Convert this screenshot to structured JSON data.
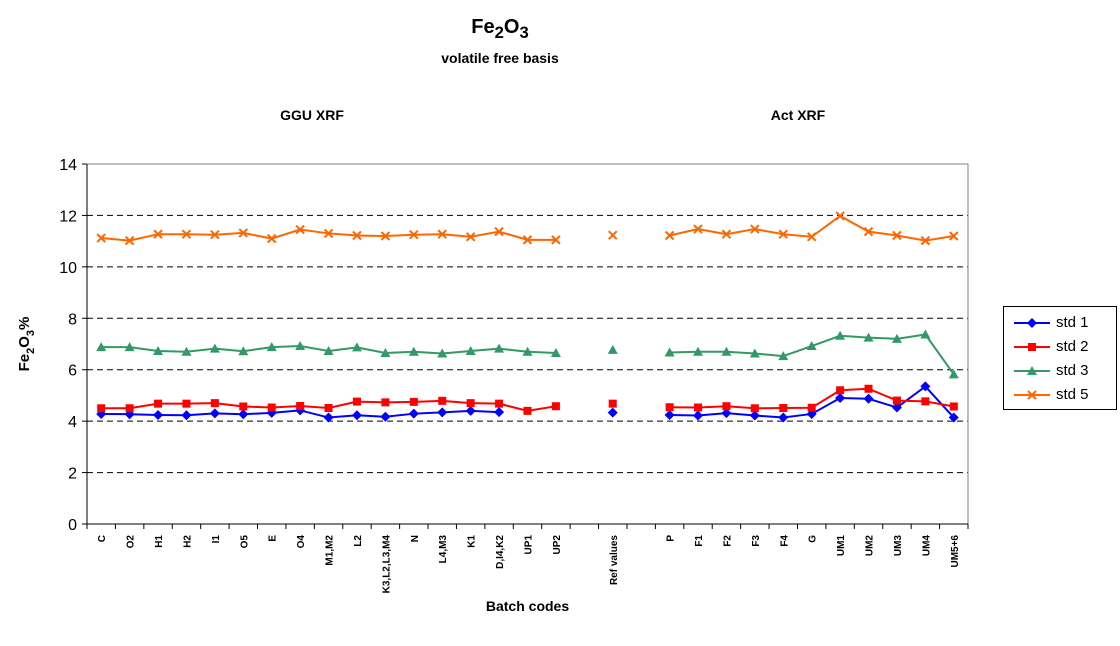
{
  "chart_data": {
    "type": "line",
    "title": "Fe2O3",
    "title_parts": {
      "base": "Fe",
      "sub1": "2",
      "mid": "O",
      "sub2": "3"
    },
    "subtitle": "volatile free basis",
    "section_labels": [
      "GGU XRF",
      "Act XRF"
    ],
    "xlabel": "Batch codes",
    "ylabel": "Fe2O3%",
    "ylabel_parts": {
      "base": "Fe",
      "sub1": "2",
      "mid": "O",
      "sub2": "3",
      "tail": "%"
    },
    "ylim": [
      0,
      14
    ],
    "yticks": [
      0,
      2,
      4,
      6,
      8,
      10,
      12,
      14
    ],
    "grid": "horizontal dashed",
    "legend_position": "right",
    "categories": [
      "C",
      "O2",
      "H1",
      "H2",
      "I1",
      "O5",
      "E",
      "O4",
      "M1,M2",
      "L2",
      "K3,L2,L3,M4",
      "N",
      "L4,M3",
      "K1",
      "D,I4,K2",
      "UP1",
      "UP2",
      "",
      "Ref values",
      "",
      "P",
      "F1",
      "F2",
      "F3",
      "F4",
      "G",
      "UM1",
      "UM2",
      "UM3",
      "UM4",
      "UM5+6"
    ],
    "series": [
      {
        "name": "std 1",
        "color": "#0000ff",
        "marker": "diamond",
        "values": [
          4.28,
          4.27,
          4.24,
          4.23,
          4.3,
          4.27,
          4.32,
          4.42,
          4.14,
          4.23,
          4.17,
          4.29,
          4.34,
          4.4,
          4.35,
          null,
          null,
          null,
          4.33,
          null,
          4.24,
          4.22,
          4.31,
          4.22,
          4.14,
          4.28,
          4.9,
          4.87,
          4.53,
          5.35,
          4.14
        ]
      },
      {
        "name": "std 2",
        "color": "#ff0000",
        "marker": "square",
        "values": [
          4.5,
          4.5,
          4.68,
          4.68,
          4.7,
          4.57,
          4.53,
          4.59,
          4.51,
          4.76,
          4.73,
          4.75,
          4.79,
          4.7,
          4.68,
          4.4,
          4.58,
          null,
          4.68,
          null,
          4.54,
          4.53,
          4.58,
          4.5,
          4.51,
          4.52,
          5.2,
          5.26,
          4.8,
          4.77,
          4.57
        ]
      },
      {
        "name": "std 3",
        "color": "#339966",
        "marker": "triangle",
        "values": [
          6.88,
          6.88,
          6.73,
          6.7,
          6.82,
          6.72,
          6.88,
          6.92,
          6.73,
          6.87,
          6.65,
          6.7,
          6.63,
          6.73,
          6.82,
          6.7,
          6.65,
          null,
          6.77,
          null,
          6.67,
          6.7,
          6.7,
          6.63,
          6.53,
          6.92,
          7.32,
          7.25,
          7.2,
          7.37,
          5.82
        ]
      },
      {
        "name": "std 5",
        "color": "#ff6600",
        "marker": "x",
        "values": [
          11.12,
          11.02,
          11.27,
          11.27,
          11.25,
          11.32,
          11.1,
          11.45,
          11.3,
          11.22,
          11.2,
          11.25,
          11.27,
          11.17,
          11.37,
          11.05,
          11.05,
          null,
          11.23,
          null,
          11.22,
          11.47,
          11.27,
          11.47,
          11.27,
          11.17,
          11.98,
          11.37,
          11.22,
          11.02,
          11.2
        ]
      }
    ]
  }
}
